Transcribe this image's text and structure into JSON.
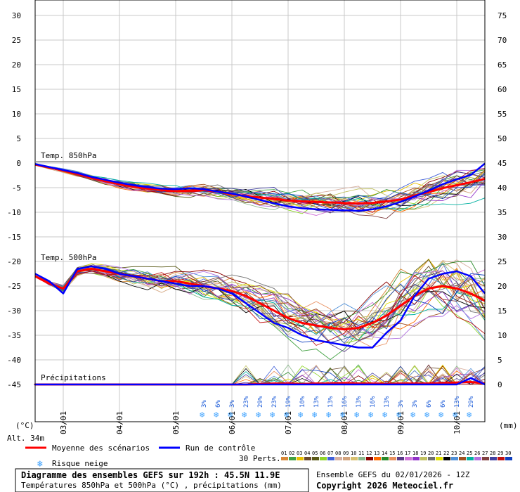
{
  "chart_data": {
    "type": "line",
    "title": "Diagramme des ensembles GEFS sur 192h : 45.5N 11.9E",
    "subtitle": "Températures 850hPa et 500hPa (°C) , précipitations (mm)",
    "run_info": "Ensemble GEFS du 02/01/2026 - 12Z",
    "copyright": "Copyright 2026 Meteociel.fr",
    "altitude": "Alt. 34m",
    "left_unit": "(°C)",
    "right_unit": "(mm)",
    "left_axis": {
      "ylim": [
        -50,
        30
      ],
      "ticks": [
        30,
        25,
        20,
        15,
        10,
        5,
        0,
        -5,
        -10,
        -15,
        -20,
        -25,
        -30,
        -35,
        -40,
        -45
      ]
    },
    "right_axis": {
      "ticks": [
        75,
        70,
        65,
        60,
        55,
        50,
        45,
        40,
        35,
        30,
        25,
        20,
        15,
        10,
        5,
        0
      ]
    },
    "x_axis": {
      "range_h": [
        0,
        192
      ],
      "date_ticks": [
        {
          "h": 12,
          "label": "03/01"
        },
        {
          "h": 36,
          "label": "04/01"
        },
        {
          "h": 60,
          "label": "05/01"
        },
        {
          "h": 84,
          "label": "06/01"
        },
        {
          "h": 108,
          "label": "07/01"
        },
        {
          "h": 132,
          "label": "08/01"
        },
        {
          "h": 156,
          "label": "09/01"
        },
        {
          "h": 180,
          "label": "10/01"
        }
      ]
    },
    "panel_labels": {
      "t850": "Temp. 850hPa",
      "t500": "Temp. 500hPa",
      "precip": "Précipitations"
    },
    "x_hours": [
      0,
      6,
      12,
      18,
      24,
      30,
      36,
      42,
      48,
      54,
      60,
      66,
      72,
      78,
      84,
      90,
      96,
      102,
      108,
      114,
      120,
      126,
      132,
      138,
      144,
      150,
      156,
      162,
      168,
      174,
      180,
      186,
      192
    ],
    "series": [
      {
        "name": "Moyenne des scénarios",
        "panel": "t850",
        "values": [
          -0.3,
          -0.9,
          -1.5,
          -2.2,
          -3.0,
          -3.7,
          -4.3,
          -4.8,
          -5.2,
          -5.5,
          -5.7,
          -5.6,
          -5.5,
          -5.8,
          -6.3,
          -6.7,
          -7.0,
          -7.3,
          -7.6,
          -7.8,
          -7.9,
          -8.0,
          -8.1,
          -8.2,
          -8.1,
          -7.8,
          -7.4,
          -6.6,
          -5.9,
          -5.1,
          -4.5,
          -3.9,
          -3.2
        ]
      },
      {
        "name": "Run de contrôle",
        "panel": "t850",
        "values": [
          -0.2,
          -0.8,
          -1.4,
          -2.0,
          -2.8,
          -3.4,
          -4.0,
          -4.5,
          -4.9,
          -5.2,
          -5.3,
          -5.1,
          -5.3,
          -5.8,
          -6.2,
          -6.8,
          -7.5,
          -8.2,
          -8.8,
          -9.2,
          -9.4,
          -9.5,
          -9.6,
          -9.7,
          -9.4,
          -8.8,
          -7.9,
          -6.8,
          -5.6,
          -4.3,
          -3.3,
          -2.4,
          -0.1
        ]
      },
      {
        "name": "Moyenne des scénarios",
        "panel": "t500",
        "values": [
          -23,
          -24.5,
          -25.5,
          -22.0,
          -21.5,
          -22.0,
          -22.5,
          -23.0,
          -23.5,
          -24.0,
          -24.0,
          -24.5,
          -25.0,
          -25.5,
          -26.0,
          -27.0,
          -28.5,
          -30.0,
          -31.5,
          -32.5,
          -33.0,
          -33.5,
          -33.8,
          -33.5,
          -32.5,
          -31.0,
          -29.0,
          -27.0,
          -25.5,
          -25.0,
          -25.5,
          -26.5,
          -28.0
        ]
      },
      {
        "name": "Run de contrôle",
        "panel": "t500",
        "values": [
          -22.5,
          -24.0,
          -26.5,
          -21.5,
          -21.0,
          -21.5,
          -22.5,
          -23.0,
          -23.5,
          -24.0,
          -24.5,
          -25.0,
          -25.0,
          -25.5,
          -26.5,
          -28.5,
          -30.5,
          -32.5,
          -33.5,
          -35.0,
          -36.0,
          -36.5,
          -37.0,
          -37.5,
          -37.5,
          -34.5,
          -32.0,
          -27.0,
          -23.5,
          -22.5,
          -22.0,
          -23.0,
          -26.5
        ]
      },
      {
        "name": "Moyenne des scénarios",
        "panel": "precip",
        "values": [
          0,
          0,
          0,
          0,
          0,
          0,
          0,
          0,
          0,
          0,
          0,
          0,
          0,
          0,
          0,
          0,
          0.1,
          0.2,
          0.2,
          0.1,
          0.2,
          0.2,
          0.3,
          0.2,
          0.2,
          0.1,
          0.2,
          0.2,
          0.2,
          0.3,
          0.4,
          0.5,
          0.2
        ]
      },
      {
        "name": "Run de contrôle",
        "panel": "precip",
        "values": [
          0,
          0,
          0,
          0,
          0,
          0,
          0,
          0,
          0,
          0,
          0,
          0,
          0,
          0,
          0,
          0,
          0,
          0,
          0,
          0,
          0,
          0,
          0,
          0,
          0,
          0,
          0,
          0,
          0,
          0,
          0,
          1.3,
          0
        ]
      }
    ],
    "snow_risk": [
      {
        "h": 72,
        "label": "3%"
      },
      {
        "h": 78,
        "label": "6%"
      },
      {
        "h": 84,
        "label": "3%"
      },
      {
        "h": 90,
        "label": "23%"
      },
      {
        "h": 96,
        "label": "29%"
      },
      {
        "h": 102,
        "label": "23%"
      },
      {
        "h": 108,
        "label": "19%"
      },
      {
        "h": 114,
        "label": "10%"
      },
      {
        "h": 120,
        "label": "13%"
      },
      {
        "h": 126,
        "label": "13%"
      },
      {
        "h": 132,
        "label": "16%"
      },
      {
        "h": 138,
        "label": "13%"
      },
      {
        "h": 144,
        "label": "16%"
      },
      {
        "h": 150,
        "label": "13%"
      },
      {
        "h": 156,
        "label": "3%"
      },
      {
        "h": 162,
        "label": "3%"
      },
      {
        "h": 168,
        "label": "6%"
      },
      {
        "h": 174,
        "label": "6%"
      },
      {
        "h": 180,
        "label": "13%"
      },
      {
        "h": 186,
        "label": "29%"
      }
    ],
    "legend": {
      "mean": "Moyenne des scénarios",
      "control": "Run de contrôle",
      "snow": "Risque neige",
      "perturbations": "30 Perts."
    },
    "perturbations": {
      "labels": [
        "01",
        "02",
        "03",
        "04",
        "05",
        "06",
        "07",
        "08",
        "09",
        "10",
        "11",
        "12",
        "13",
        "14",
        "15",
        "16",
        "17",
        "18",
        "19",
        "20",
        "21",
        "22",
        "23",
        "24",
        "25",
        "26",
        "27",
        "28",
        "29",
        "30"
      ],
      "colors": [
        "#d88838",
        "#3fa03f",
        "#e8c000",
        "#6b4a2b",
        "#5a5a18",
        "#8fd42a",
        "#4060d8",
        "#d8b0a0",
        "#d2a37c",
        "#d8c070",
        "#8bb88b",
        "#8b0000",
        "#ff6a00",
        "#2a8a2a",
        "#e89060",
        "#5a3a88",
        "#d070d8",
        "#9030c8",
        "#c0c060",
        "#707070",
        "#e0e000",
        "#000000",
        "#5090d8",
        "#a05020",
        "#00b0a0",
        "#b070e0",
        "#804040",
        "#4040a0",
        "#c01010",
        "#1040c0"
      ]
    },
    "colors": {
      "mean": "#ff0000",
      "control": "#0000ff",
      "snow_icon": "#3aa0ff"
    }
  }
}
